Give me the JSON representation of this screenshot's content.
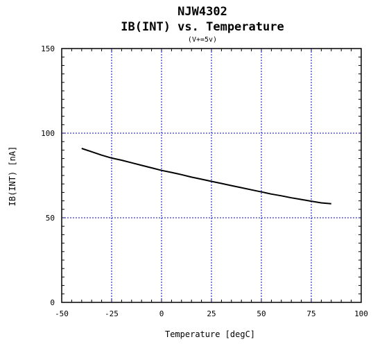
{
  "chart_data": {
    "type": "line",
    "title": "NJW4302",
    "title_line2": "IB(INT) vs. Temperature",
    "subtitle": "(V+=5v)",
    "xlabel": "Temperature [degC]",
    "ylabel": "IB(INT) [nA]",
    "xlim": [
      -50,
      100
    ],
    "ylim": [
      0,
      150
    ],
    "xticks": [
      -50,
      -25,
      0,
      25,
      50,
      75,
      100
    ],
    "yticks": [
      0,
      50,
      100,
      150
    ],
    "x_minor_step": 5,
    "y_minor_step": 5,
    "grid": true,
    "colors": {
      "grid": "#0000cc",
      "line": "#000000",
      "frame": "#000000"
    },
    "series": [
      {
        "x": [
          -40,
          -35,
          -30,
          -25,
          -20,
          -15,
          -10,
          -5,
          0,
          5,
          10,
          15,
          20,
          25,
          30,
          35,
          40,
          45,
          50,
          55,
          60,
          65,
          70,
          75,
          80,
          85
        ],
        "y": [
          91,
          89,
          87,
          85.3,
          84,
          82.5,
          81,
          79.5,
          78,
          76.8,
          75.5,
          74,
          72.8,
          71.5,
          70.3,
          69,
          67.8,
          66.5,
          65.3,
          64,
          63,
          61.8,
          60.8,
          59.8,
          58.8,
          58.3
        ]
      }
    ]
  }
}
